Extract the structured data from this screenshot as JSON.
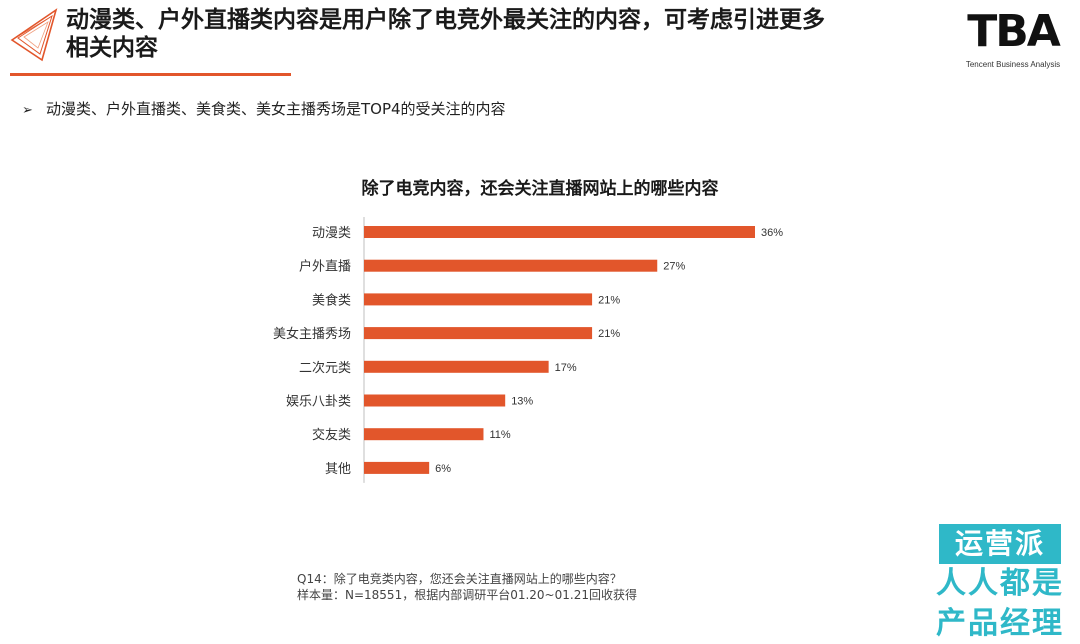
{
  "header": {
    "title_line1": "动漫类、户外直播类内容是用户除了电竞外最关注的内容，可考虑引进更多",
    "title_line2": "相关内容",
    "logo_mark": "TBA",
    "logo_subtitle": "Tencent Business Analysis"
  },
  "bullet": {
    "text": "动漫类、户外直播类、美食类、美女主播秀场是TOP4的受关注的内容"
  },
  "chart_data": {
    "type": "bar",
    "orientation": "horizontal",
    "title": "除了电竞内容，还会关注直播网站上的哪些内容",
    "categories": [
      "动漫类",
      "户外直播",
      "美食类",
      "美女主播秀场",
      "二次元类",
      "娱乐八卦类",
      "交友类",
      "其他"
    ],
    "values": [
      36,
      27,
      21,
      21,
      17,
      13,
      11,
      6
    ],
    "value_labels": [
      "36%",
      "27%",
      "21%",
      "21%",
      "17%",
      "13%",
      "11%",
      "6%"
    ],
    "unit": "%",
    "xlim": [
      0,
      36
    ],
    "grid": false,
    "bar_color": "#e2562b"
  },
  "footnote": {
    "question": "Q14：除了电竞类内容，您还会关注直播网站上的哪些内容？",
    "sample": "样本量：N=18551，根据内部调研平台01.20~01.21回收获得"
  },
  "watermark": {
    "text_top": "运营派",
    "text_bottom": "人人都是产品经理",
    "color": "#2fb8c8"
  },
  "colors": {
    "accent": "#e2562b"
  }
}
